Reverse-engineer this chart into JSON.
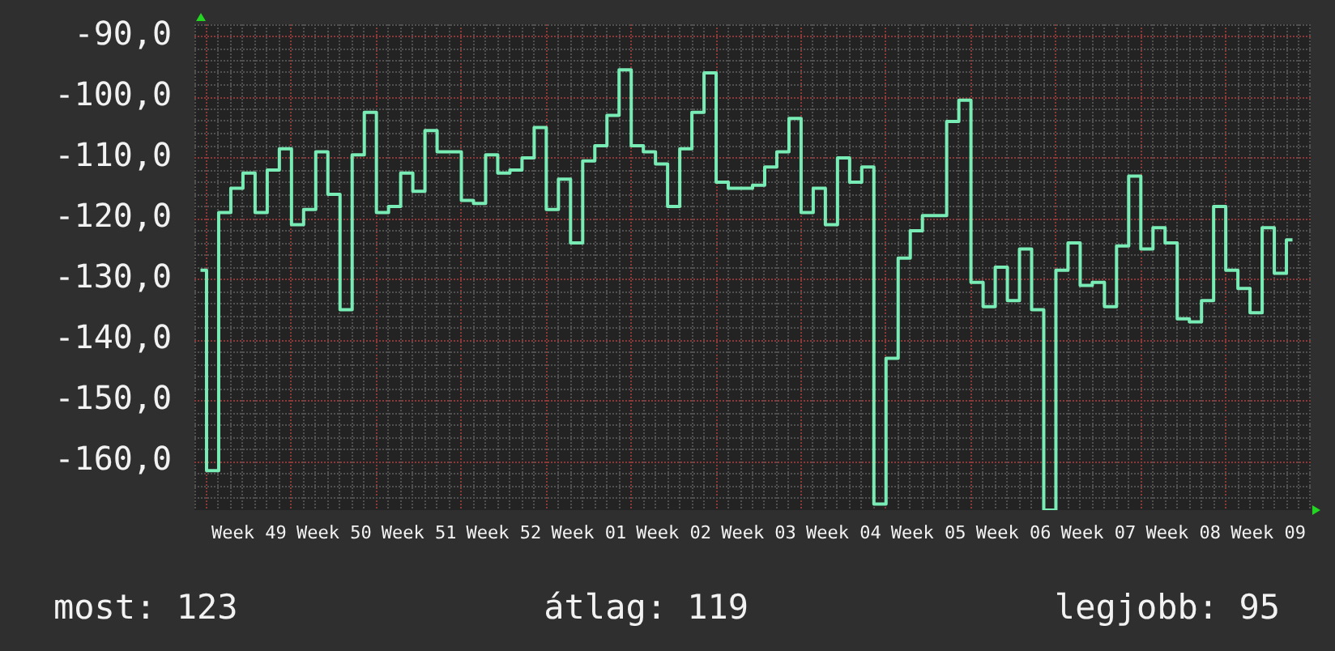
{
  "chart_data": {
    "type": "step",
    "categories": [
      null,
      null,
      null,
      null,
      "Week 49",
      null,
      null,
      null,
      null,
      null,
      null,
      "Week 50",
      null,
      null,
      null,
      null,
      null,
      null,
      "Week 51",
      null,
      null,
      null,
      null,
      null,
      null,
      "Week 52",
      null,
      null,
      null,
      null,
      null,
      null,
      "Week 01",
      null,
      null,
      null,
      null,
      null,
      null,
      "Week 02",
      null,
      null,
      null,
      null,
      null,
      null,
      "Week 03",
      null,
      null,
      null,
      null,
      null,
      null,
      "Week 04",
      null,
      null,
      null,
      null,
      null,
      null,
      "Week 05",
      null,
      null,
      null,
      null,
      null,
      null,
      "Week 06",
      null,
      null,
      null,
      null,
      null,
      null,
      "Week 07",
      null,
      null,
      null,
      null,
      null,
      null,
      "Week 08",
      null,
      null,
      null,
      null,
      null,
      null,
      "Week 09",
      null,
      null,
      null
    ],
    "values": [
      -128.5,
      -161.5,
      -119,
      -115,
      -112.5,
      -119,
      -112,
      -108.5,
      -121,
      -118.5,
      -109,
      -116,
      -135,
      -109.5,
      -102.5,
      -119,
      -118,
      -112.5,
      -115.5,
      -105.5,
      -109,
      -109,
      -117,
      -117.5,
      -109.5,
      -112.5,
      -112,
      -110,
      -105,
      -118.5,
      -113.5,
      -124,
      -110.5,
      -108,
      -103,
      -95.5,
      -108,
      -109,
      -111,
      -118,
      -108.5,
      -102.5,
      -96,
      -114,
      -115,
      -115,
      -114.5,
      -111.5,
      -109,
      -103.5,
      -119,
      -115,
      -121,
      -110,
      -114,
      -111.5,
      -167,
      -143,
      -126.5,
      -122,
      -119.5,
      -119.5,
      -104,
      -100.5,
      -130.5,
      -134.5,
      -128,
      -133.5,
      -125,
      -135,
      -168,
      -128.5,
      -124,
      -131,
      -130.5,
      -134.5,
      -124.5,
      -113,
      -125,
      -121.5,
      -124,
      -136.5,
      -137,
      -133.5,
      -118,
      -128.5,
      -131.5,
      -135.5,
      -121.5,
      -129,
      -123.5,
      null
    ],
    "color": "#78ecb4",
    "ylim": [
      -168,
      -88
    ],
    "yticks": [
      {
        "value": -166,
        "label": null
      },
      {
        "value": -164,
        "label": null
      },
      {
        "value": -162,
        "label": null
      },
      {
        "value": -160,
        "label": "-160,0"
      },
      {
        "value": -158,
        "label": null
      },
      {
        "value": -156,
        "label": null
      },
      {
        "value": -154,
        "label": null
      },
      {
        "value": -152,
        "label": null
      },
      {
        "value": -150,
        "label": "-150,0"
      },
      {
        "value": -148,
        "label": null
      },
      {
        "value": -146,
        "label": null
      },
      {
        "value": -144,
        "label": null
      },
      {
        "value": -142,
        "label": null
      },
      {
        "value": -140,
        "label": "-140,0"
      },
      {
        "value": -138,
        "label": null
      },
      {
        "value": -136,
        "label": null
      },
      {
        "value": -134,
        "label": null
      },
      {
        "value": -132,
        "label": null
      },
      {
        "value": -130,
        "label": "-130,0"
      },
      {
        "value": -128,
        "label": null
      },
      {
        "value": -126,
        "label": null
      },
      {
        "value": -124,
        "label": null
      },
      {
        "value": -122,
        "label": null
      },
      {
        "value": -120,
        "label": "-120,0"
      },
      {
        "value": -118,
        "label": null
      },
      {
        "value": -116,
        "label": null
      },
      {
        "value": -114,
        "label": null
      },
      {
        "value": -112,
        "label": null
      },
      {
        "value": -110,
        "label": "-110,0"
      },
      {
        "value": -108,
        "label": null
      },
      {
        "value": -106,
        "label": null
      },
      {
        "value": -104,
        "label": null
      },
      {
        "value": -102,
        "label": null
      },
      {
        "value": -100,
        "label": "-100,0"
      },
      {
        "value": -98,
        "label": null
      },
      {
        "value": -96,
        "label": null
      },
      {
        "value": -94,
        "label": null
      },
      {
        "value": -92,
        "label": null
      },
      {
        "value": -90,
        "label": "-90,0"
      },
      {
        "value": -88,
        "label": null
      }
    ],
    "grid": true,
    "marker": "none",
    "annotations": [
      "most: 123",
      "átlag: 119",
      "legjobb: 95"
    ]
  }
}
